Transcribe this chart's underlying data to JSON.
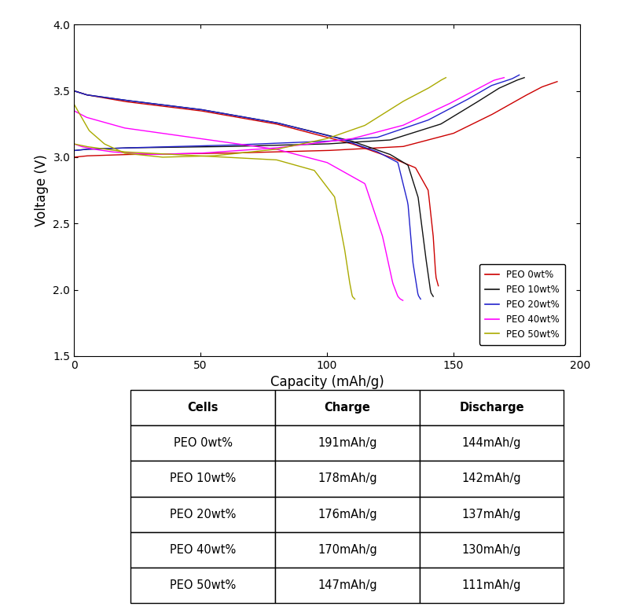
{
  "xlabel": "Capacity (mAh/g)",
  "ylabel": "Voltage (V)",
  "xlim": [
    0,
    200
  ],
  "ylim": [
    1.5,
    4.0
  ],
  "xticks": [
    0,
    50,
    100,
    150,
    200
  ],
  "yticks": [
    1.5,
    2.0,
    2.5,
    3.0,
    3.5,
    4.0
  ],
  "legend_labels": [
    "PEO 0wt%",
    "PEO 10wt%",
    "PEO 20wt%",
    "PEO 40wt%",
    "PEO 50wt%"
  ],
  "legend_colors": [
    "#cc0000",
    "#111111",
    "#2222cc",
    "#ff00ff",
    "#aaaa00"
  ],
  "table_headers": [
    "Cells",
    "Charge",
    "Discharge"
  ],
  "table_rows": [
    [
      "PEO 0wt%",
      "191mAh/g",
      "144mAh/g"
    ],
    [
      "PEO 10wt%",
      "178mAh/g",
      "142mAh/g"
    ],
    [
      "PEO 20wt%",
      "176mAh/g",
      "137mAh/g"
    ],
    [
      "PEO 40wt%",
      "170mAh/g",
      "130mAh/g"
    ],
    [
      "PEO 50wt%",
      "147mAh/g",
      "111mAh/g"
    ]
  ],
  "curves": {
    "PEO_0wt": {
      "color": "#cc0000",
      "charge_x": [
        0,
        5,
        20,
        60,
        100,
        130,
        150,
        165,
        178,
        185,
        191
      ],
      "charge_y": [
        3.0,
        3.01,
        3.02,
        3.03,
        3.05,
        3.08,
        3.18,
        3.32,
        3.46,
        3.53,
        3.57
      ],
      "discharge_x": [
        0,
        5,
        20,
        50,
        80,
        110,
        125,
        135,
        140,
        142,
        143,
        144
      ],
      "discharge_y": [
        3.5,
        3.47,
        3.42,
        3.35,
        3.25,
        3.1,
        3.0,
        2.92,
        2.75,
        2.4,
        2.1,
        2.03
      ]
    },
    "PEO_10wt": {
      "color": "#111111",
      "charge_x": [
        0,
        5,
        20,
        60,
        100,
        125,
        145,
        158,
        168,
        175,
        178
      ],
      "charge_y": [
        3.05,
        3.06,
        3.07,
        3.08,
        3.1,
        3.13,
        3.25,
        3.4,
        3.52,
        3.58,
        3.6
      ],
      "discharge_x": [
        0,
        5,
        20,
        50,
        80,
        110,
        125,
        132,
        136,
        139,
        141,
        142
      ],
      "discharge_y": [
        3.5,
        3.47,
        3.43,
        3.36,
        3.26,
        3.12,
        3.02,
        2.94,
        2.7,
        2.25,
        1.98,
        1.95
      ]
    },
    "PEO_20wt": {
      "color": "#2222cc",
      "charge_x": [
        0,
        5,
        20,
        60,
        100,
        120,
        140,
        155,
        165,
        173,
        176
      ],
      "charge_y": [
        3.05,
        3.06,
        3.07,
        3.09,
        3.12,
        3.15,
        3.28,
        3.43,
        3.54,
        3.59,
        3.62
      ],
      "discharge_x": [
        0,
        5,
        20,
        50,
        80,
        105,
        120,
        128,
        132,
        134,
        136,
        137
      ],
      "discharge_y": [
        3.5,
        3.47,
        3.43,
        3.36,
        3.26,
        3.14,
        3.04,
        2.96,
        2.65,
        2.2,
        1.96,
        1.93
      ]
    },
    "PEO_40wt": {
      "color": "#ff00ff",
      "charge_x": [
        0,
        3,
        8,
        15,
        30,
        50,
        80,
        110,
        130,
        148,
        160,
        166,
        170
      ],
      "charge_y": [
        3.1,
        3.08,
        3.06,
        3.04,
        3.02,
        3.03,
        3.07,
        3.14,
        3.24,
        3.4,
        3.52,
        3.58,
        3.6
      ],
      "discharge_x": [
        0,
        5,
        20,
        50,
        80,
        100,
        115,
        122,
        126,
        128,
        129,
        130
      ],
      "discharge_y": [
        3.35,
        3.3,
        3.22,
        3.14,
        3.06,
        2.96,
        2.8,
        2.4,
        2.05,
        1.95,
        1.93,
        1.92
      ]
    },
    "PEO_50wt": {
      "color": "#aaaa00",
      "charge_x": [
        0,
        3,
        6,
        12,
        20,
        35,
        55,
        80,
        100,
        115,
        130,
        140,
        145,
        147
      ],
      "charge_y": [
        3.4,
        3.3,
        3.2,
        3.1,
        3.03,
        3.0,
        3.01,
        3.06,
        3.14,
        3.24,
        3.42,
        3.52,
        3.58,
        3.6
      ],
      "discharge_x": [
        0,
        5,
        20,
        50,
        80,
        95,
        103,
        107,
        109,
        110,
        111
      ],
      "discharge_y": [
        3.1,
        3.08,
        3.04,
        3.01,
        2.98,
        2.9,
        2.7,
        2.3,
        2.05,
        1.95,
        1.93
      ]
    }
  }
}
